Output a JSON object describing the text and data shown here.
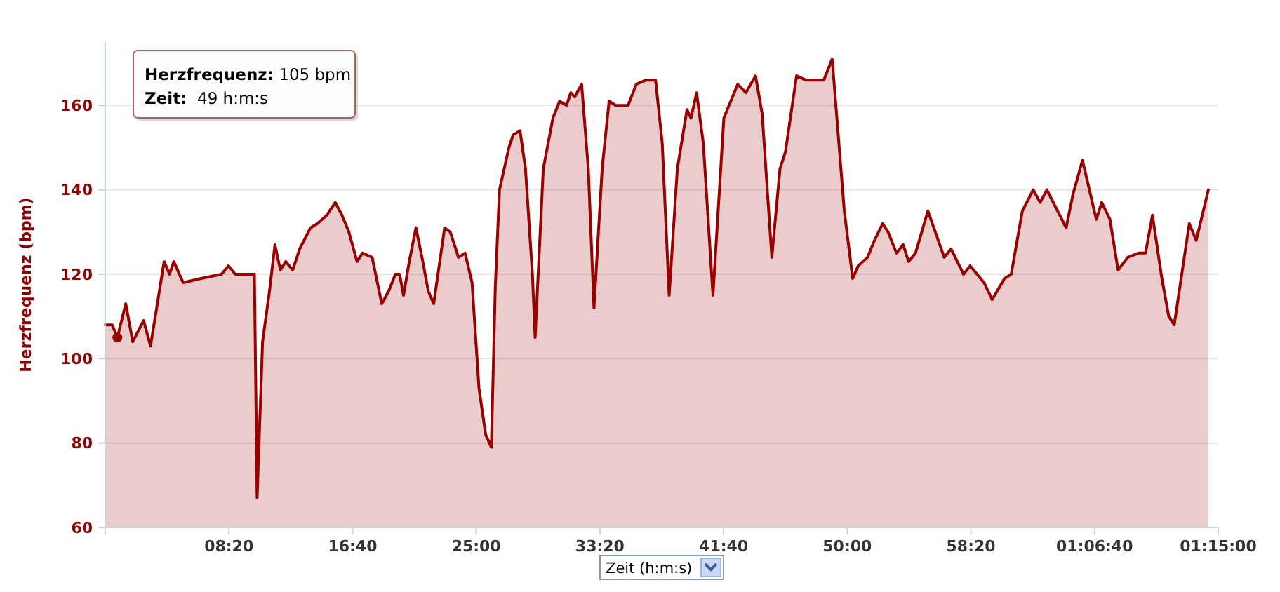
{
  "chart_data": {
    "type": "area",
    "xlabel": "Zeit (h:m:s)",
    "ylabel": "Herzfrequenz (bpm)",
    "xlim": [
      0,
      4500
    ],
    "ylim": [
      60,
      175
    ],
    "xticks": [
      {
        "value": 0,
        "label": null
      },
      {
        "value": 500,
        "label": "08:20"
      },
      {
        "value": 1000,
        "label": "16:40"
      },
      {
        "value": 1500,
        "label": "25:00"
      },
      {
        "value": 2000,
        "label": "33:20"
      },
      {
        "value": 2500,
        "label": "41:40"
      },
      {
        "value": 3000,
        "label": "50:00"
      },
      {
        "value": 3500,
        "label": "58:20"
      },
      {
        "value": 4000,
        "label": "01:06:40"
      },
      {
        "value": 4500,
        "label": "01:15:00"
      }
    ],
    "yticks": [
      60,
      80,
      100,
      120,
      140,
      160
    ],
    "grid": "y",
    "x": [
      0,
      28,
      49,
      83,
      111,
      155,
      183,
      238,
      260,
      277,
      315,
      387,
      470,
      498,
      526,
      581,
      603,
      614,
      636,
      664,
      686,
      708,
      730,
      758,
      786,
      830,
      858,
      896,
      930,
      957,
      985,
      1018,
      1040,
      1079,
      1118,
      1146,
      1173,
      1190,
      1206,
      1229,
      1256,
      1284,
      1306,
      1328,
      1372,
      1395,
      1428,
      1455,
      1483,
      1511,
      1538,
      1561,
      1577,
      1594,
      1632,
      1649,
      1677,
      1699,
      1727,
      1738,
      1771,
      1810,
      1837,
      1865,
      1882,
      1898,
      1926,
      1953,
      1976,
      2009,
      2037,
      2064,
      2114,
      2147,
      2186,
      2225,
      2252,
      2280,
      2313,
      2352,
      2368,
      2391,
      2418,
      2457,
      2501,
      2557,
      2590,
      2629,
      2656,
      2695,
      2728,
      2750,
      2795,
      2833,
      2905,
      2939,
      2988,
      3022,
      3044,
      3082,
      3110,
      3143,
      3165,
      3199,
      3226,
      3248,
      3276,
      3326,
      3392,
      3420,
      3470,
      3497,
      3553,
      3586,
      3636,
      3663,
      3708,
      3752,
      3780,
      3807,
      3885,
      3913,
      3951,
      4007,
      4029,
      4062,
      4095,
      4134,
      4178,
      4206,
      4234,
      4272,
      4300,
      4322,
      4383,
      4411,
      4460
    ],
    "series": [
      {
        "color": "#990000",
        "values": [
          108,
          108,
          105,
          113,
          104,
          109,
          103,
          123,
          120,
          123,
          118,
          119,
          120,
          122,
          120,
          120,
          120,
          67,
          104,
          116,
          127,
          121,
          123,
          121,
          126,
          131,
          132,
          134,
          137,
          134,
          130,
          123,
          125,
          124,
          113,
          116,
          120,
          120,
          115,
          123,
          131,
          123,
          116,
          113,
          131,
          130,
          124,
          125,
          118,
          93,
          82,
          79,
          117,
          140,
          150,
          153,
          154,
          145,
          120,
          105,
          145,
          157,
          161,
          160,
          163,
          162,
          165,
          145,
          112,
          145,
          161,
          160,
          160,
          165,
          166,
          166,
          151,
          115,
          145,
          159,
          157,
          163,
          151,
          115,
          157,
          165,
          163,
          167,
          158,
          124,
          145,
          149,
          167,
          166,
          166,
          171,
          135,
          119,
          122,
          124,
          128,
          132,
          130,
          125,
          127,
          123,
          125,
          135,
          124,
          126,
          120,
          122,
          118,
          114,
          119,
          120,
          135,
          140,
          137,
          140,
          131,
          139,
          147,
          133,
          137,
          133,
          121,
          124,
          125,
          125,
          134,
          119,
          110,
          108,
          132,
          128,
          140
        ]
      },
      {
        "type": "scatter",
        "color": "#990000",
        "x": [
          49
        ],
        "values": [
          105
        ]
      }
    ],
    "annotations": [
      "Herzfrequenz: 105 bpm",
      "Zeit:  49 h:m:s"
    ]
  }
}
